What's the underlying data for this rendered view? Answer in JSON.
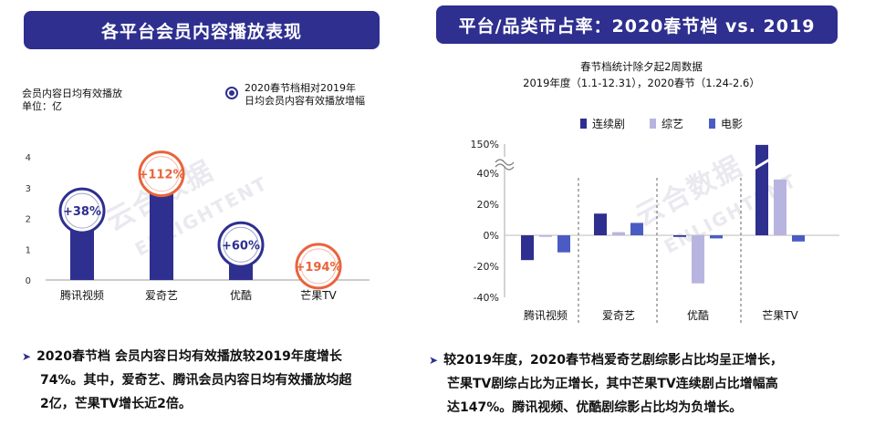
{
  "left_panel": {
    "banner_title": "各平台会员内容播放表现",
    "y_axis_label_line1": "会员内容日均有效播放",
    "y_axis_label_line2": "单位：亿",
    "legend_line1": "2020春节档相对2019年",
    "legend_line2": "日均会员内容有效播放增幅",
    "bullet_line1": "2020春节档 会员内容日均有效播放较2019年度增长",
    "bullet_line2": "74%。其中，爱奇艺、腾讯会员内容日均有效播放均超",
    "bullet_line3": "2亿，芒果TV增长近2倍。"
  },
  "right_panel": {
    "banner_title": "平台/品类市占率：2020春节档  vs. 2019",
    "subtitle_line1": "春节档统计除夕起2周数据",
    "subtitle_line2": "2019年度（1.1-12.31），2020春节（1.24-2.6）",
    "bullet_line1": "较2019年度，2020春节档爱奇艺剧综影占比均呈正增长，",
    "bullet_line2": "芒果TV剧综占比为正增长，其中芒果TV连续剧占比增幅高",
    "bullet_line3": "达147%。腾讯视频、优酷剧综影占比均为负增长。"
  },
  "watermark": {
    "cn": "云合数据",
    "en": "ENLIGHTENT"
  },
  "colors": {
    "brand_navy": "#2e2f8f",
    "series_tv": "#2e2f8f",
    "series_variety": "#b8b4e0",
    "series_movie": "#4a5cc4",
    "badge_blue": "#2e2f8f",
    "badge_orange": "#e8643c"
  },
  "chart_data": [
    {
      "type": "bar",
      "title": "各平台会员内容播放表现",
      "ylabel": "会员内容日均有效播放 单位：亿",
      "categories": [
        "腾讯视频",
        "爱奇艺",
        "优酷",
        "芒果TV"
      ],
      "values": [
        2.1,
        3.3,
        1.0,
        0.3
      ],
      "ylim": [
        0,
        4
      ],
      "yticks": [
        0,
        1,
        2,
        3,
        4
      ],
      "annotations": [
        "+38%",
        "+112%",
        "+60%",
        "+194%"
      ],
      "annotation_colors": [
        "#2e2f8f",
        "#e8643c",
        "#2e2f8f",
        "#e8643c"
      ],
      "legend": "2020春节档相对2019年日均会员内容有效播放增幅",
      "grid": false
    },
    {
      "type": "bar",
      "title": "平台/品类市占率：2020春节档  vs. 2019",
      "categories": [
        "腾讯视频",
        "爱奇艺",
        "优酷",
        "芒果TV"
      ],
      "series": [
        {
          "name": "连续剧",
          "values": [
            -16,
            14,
            -1,
            147
          ]
        },
        {
          "name": "综艺",
          "values": [
            -1,
            2,
            -31,
            36
          ]
        },
        {
          "name": "电影",
          "values": [
            -11,
            8,
            -2,
            -4
          ]
        }
      ],
      "yticks": [
        "150%",
        "40%",
        "20%",
        "0%",
        "-20%",
        "-40%"
      ],
      "ylim": [
        -40,
        150
      ],
      "axis_break": "between 40% and 150%",
      "legend_position": "top",
      "grid": false
    }
  ]
}
